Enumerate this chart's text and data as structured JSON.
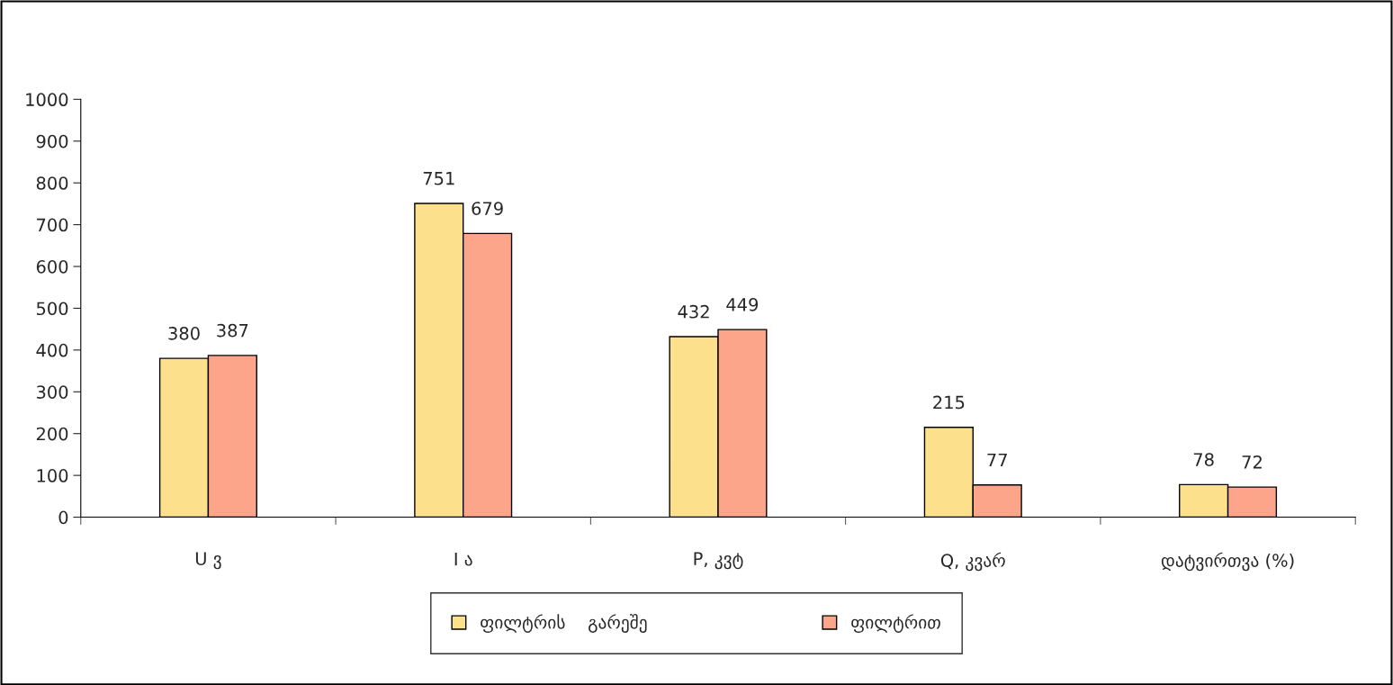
{
  "chart_data": {
    "type": "bar",
    "categories": [
      "U ვ",
      "I ა",
      "P, კვტ",
      "Q, კვარ",
      "დატვირთვა (%)"
    ],
    "series": [
      {
        "name": "ფილტრის    გარეშე",
        "color": "#fde08c",
        "values": [
          380,
          751,
          432,
          215,
          78
        ]
      },
      {
        "name": "ფილტრით",
        "color": "#fca58a",
        "values": [
          387,
          679,
          449,
          77,
          72
        ]
      }
    ],
    "ylim": [
      0,
      1000
    ],
    "yticks": [
      0,
      100,
      200,
      300,
      400,
      500,
      600,
      700,
      800,
      900,
      1000
    ],
    "data_labels": true,
    "grid": false,
    "legend": "bottom"
  }
}
